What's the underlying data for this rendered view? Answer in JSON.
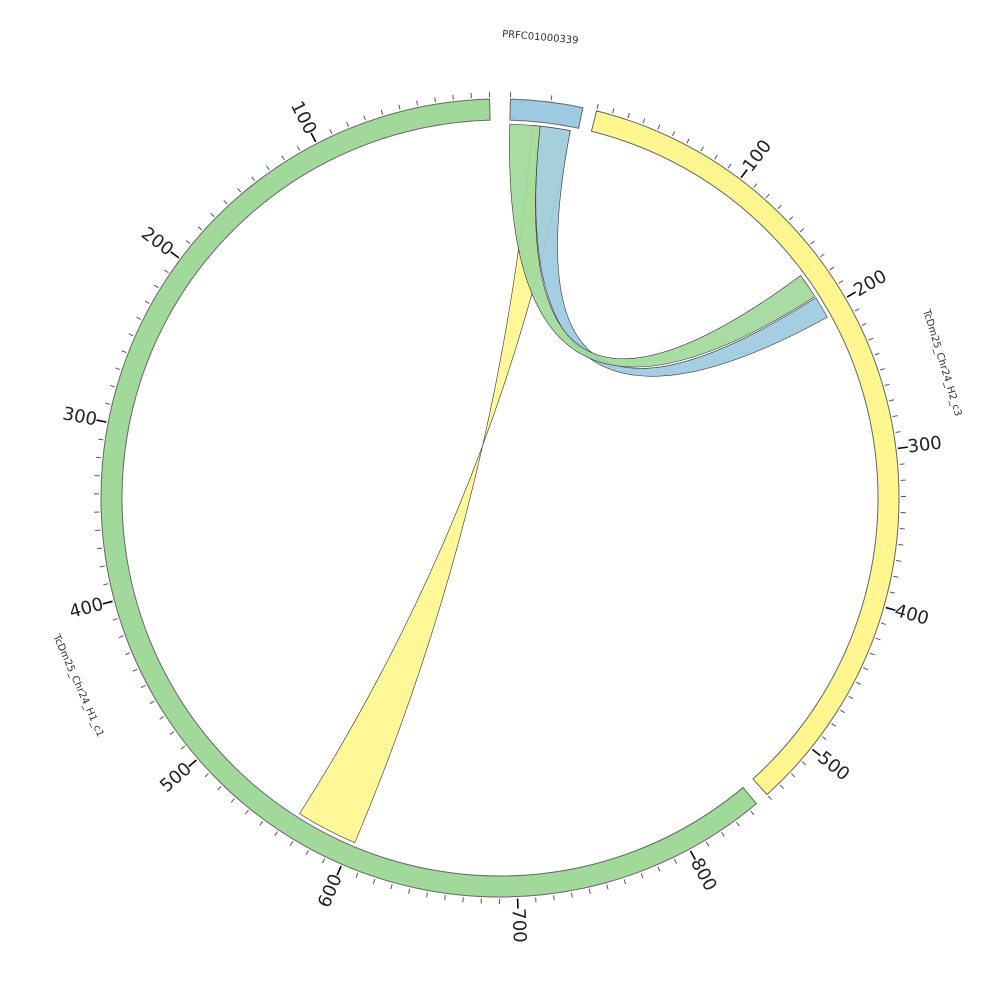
{
  "chart_data": {
    "type": "chord",
    "segments": [
      {
        "name": "PRFC01000339",
        "color": "#9ecae1",
        "start": 0,
        "end": 18,
        "ticks_labeled": []
      },
      {
        "name": "TcDm25_Chr24_H2_c3",
        "color": "#fff68f",
        "start": 0,
        "end": 540,
        "ticks_labeled": [
          "100",
          "200",
          "300",
          "400",
          "500"
        ]
      },
      {
        "name": "TcDm25_Chr24_H1_c1",
        "color": "#a1d99b",
        "start": 0,
        "end": 845,
        "ticks_labeled": [
          "100",
          "200",
          "300",
          "400",
          "500",
          "600",
          "700",
          "800"
        ]
      }
    ],
    "links": [
      {
        "from": {
          "segment": "PRFC01000339",
          "start": 6,
          "end": 16
        },
        "to": {
          "segment": "TcDm25_Chr24_H1_c1",
          "start": 565,
          "end": 602
        },
        "color": "#fff68f"
      },
      {
        "from": {
          "segment": "PRFC01000339",
          "start": 8,
          "end": 16
        },
        "to": {
          "segment": "TcDm25_Chr24_H2_c3",
          "start": 190,
          "end": 205
        },
        "color": "#9ecae1"
      },
      {
        "from": {
          "segment": "PRFC01000339",
          "start": 0,
          "end": 8
        },
        "to": {
          "segment": "TcDm25_Chr24_H2_c3",
          "start": 172,
          "end": 189
        },
        "color": "#a1d99b"
      }
    ]
  }
}
